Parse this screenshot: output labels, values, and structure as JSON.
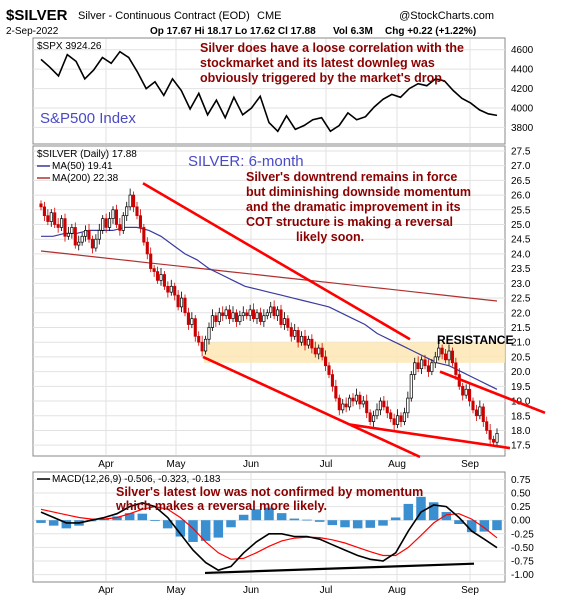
{
  "header": {
    "symbol": "$SILVER",
    "description": "Silver - Continuous Contract (EOD)",
    "exchange": "CME",
    "date": "2-Sep-2022",
    "ohlc": "Op 17.67 Hi 18.17 Lo 17.62 Cl 17.88",
    "volume": "Vol 6.3M",
    "change": "Chg +0.22 (+1.22%)",
    "watermark": "@StockCharts.com"
  },
  "colors": {
    "annotation": "#8b0000",
    "blue_label": "#4a4ac8",
    "up_candle": "#000000",
    "down_candle": "#cc0000",
    "ma50": "#3a3aa0",
    "ma200": "#b03030",
    "trendline": "#ff0000",
    "resistance_band": "#fde7b4",
    "macd_hist": "#3a8fd0",
    "macd_line": "#000000",
    "signal_line": "#ff0000"
  },
  "annotations": {
    "spx_note": [
      "Silver does have a loose correlation with the",
      "stockmarket and its latest downleg was",
      "obviously triggered by the market's drop."
    ],
    "spx_label": "S&P500 Index",
    "silver_label": "SILVER: 6-month",
    "silver_note": [
      "Silver's downtrend remains in force",
      "but diminishing downside momentum",
      "and the dramatic improvement in its",
      "COT structure is making a reversal",
      "likely soon."
    ],
    "resistance_label": "RESISTANCE",
    "macd_note": [
      "Silver's latest low was not confirmed by momentum",
      "which makes a reversal more likely."
    ]
  },
  "chart_data": [
    {
      "type": "line",
      "panel": "spx",
      "legend": "$SPX 3924.26",
      "ylim": [
        3650,
        4700
      ],
      "yticks": [
        "3800",
        "4000",
        "4200",
        "4400",
        "4600"
      ],
      "y": [
        4500,
        4420,
        4330,
        4550,
        4480,
        4300,
        4390,
        4520,
        4460,
        4580,
        4520,
        4370,
        4200,
        4270,
        4130,
        4300,
        4180,
        3990,
        4150,
        3930,
        4080,
        3900,
        4110,
        3930,
        4000,
        4120,
        3850,
        3760,
        3920,
        3780,
        3820,
        3880,
        3900,
        3760,
        3820,
        3950,
        3880,
        3910,
        4010,
        4090,
        4140,
        4110,
        4200,
        4250,
        4230,
        4300,
        4280,
        4180,
        4100,
        4050,
        3980,
        3940,
        3924
      ]
    },
    {
      "type": "candlestick",
      "panel": "silver",
      "legend": "$SILVER (Daily) 17.88",
      "ma50_legend": "MA(50) 19.41",
      "ma200_legend": "MA(200) 22.38",
      "ylim": [
        17.2,
        27.6
      ],
      "yticks": [
        "17.5",
        "18.0",
        "18.5",
        "19.0",
        "19.5",
        "20.0",
        "20.5",
        "21.0",
        "21.5",
        "22.0",
        "22.5",
        "23.0",
        "23.5",
        "24.0",
        "24.5",
        "25.0",
        "25.5",
        "26.0",
        "26.5",
        "27.0",
        "27.5"
      ],
      "months": [
        "Apr",
        "May",
        "Jun",
        "Jul",
        "Aug",
        "Sep"
      ],
      "close": [
        25.6,
        25.3,
        25.1,
        25.4,
        25.0,
        24.9,
        25.2,
        24.6,
        24.7,
        24.9,
        24.3,
        24.4,
        24.6,
        24.8,
        24.5,
        24.2,
        24.5,
        24.8,
        25.2,
        24.9,
        25.2,
        25.5,
        25.0,
        24.8,
        25.3,
        25.6,
        26.0,
        25.6,
        25.3,
        24.9,
        24.4,
        24.0,
        23.5,
        23.4,
        23.1,
        23.3,
        22.9,
        22.7,
        22.9,
        22.6,
        22.2,
        22.5,
        22.0,
        21.6,
        21.8,
        21.2,
        21.0,
        20.7,
        21.1,
        21.5,
        21.9,
        21.7,
        22.0,
        21.9,
        22.1,
        21.8,
        22.0,
        21.7,
        21.9,
        22.0,
        21.9,
        22.1,
        21.8,
        22.0,
        21.7,
        21.9,
        22.0,
        22.2,
        21.9,
        22.1,
        21.6,
        21.8,
        21.5,
        21.2,
        21.4,
        21.0,
        21.2,
        20.9,
        21.1,
        20.8,
        20.6,
        20.8,
        20.5,
        20.2,
        19.9,
        19.5,
        19.1,
        18.7,
        18.9,
        18.8,
        19.1,
        19.0,
        19.2,
        18.9,
        19.0,
        18.6,
        18.3,
        18.5,
        18.7,
        19.0,
        18.8,
        18.6,
        18.4,
        18.2,
        18.5,
        18.3,
        18.6,
        19.1,
        19.9,
        20.3,
        20.1,
        20.4,
        20.2,
        20.0,
        20.3,
        20.5,
        20.8,
        20.6,
        20.4,
        20.7,
        20.3,
        19.9,
        19.5,
        19.2,
        19.4,
        19.0,
        18.7,
        18.5,
        18.8,
        18.3,
        18.0,
        17.7,
        17.6,
        17.9
      ],
      "ma50": [
        24.6,
        24.6,
        24.7,
        24.7,
        24.8,
        24.8,
        24.8,
        24.9,
        24.9,
        24.8,
        24.6,
        24.3,
        24.0,
        23.8,
        23.5,
        23.3,
        23.1,
        22.9,
        22.8,
        22.7,
        22.6,
        22.5,
        22.4,
        22.3,
        22.2,
        22.0,
        21.8,
        21.6,
        21.3,
        21.1,
        20.9,
        20.7,
        20.5,
        20.3,
        20.2,
        20.0,
        19.8,
        19.6,
        19.4
      ],
      "ma200": [
        24.1,
        24.0,
        23.9,
        23.8,
        23.7,
        23.6,
        23.5,
        23.4,
        23.3,
        23.2,
        23.1,
        23.0,
        22.9,
        22.8,
        22.7,
        22.6,
        22.5,
        22.4
      ]
    },
    {
      "type": "line",
      "panel": "macd",
      "legend": "MACD(12,26,9) -0.506, -0.323, -0.183",
      "ylim": [
        -1.1,
        0.85
      ],
      "yticks": [
        "-1.00",
        "-0.75",
        "-0.50",
        "-0.25",
        "0.00",
        "0.25",
        "0.50",
        "0.75"
      ],
      "macd": [
        0.15,
        0.05,
        -0.05,
        -0.05,
        0.0,
        0.05,
        0.12,
        0.25,
        0.32,
        0.25,
        0.05,
        -0.25,
        -0.55,
        -0.78,
        -0.92,
        -0.85,
        -0.6,
        -0.4,
        -0.25,
        -0.25,
        -0.3,
        -0.3,
        -0.35,
        -0.45,
        -0.55,
        -0.65,
        -0.72,
        -0.75,
        -0.6,
        -0.2,
        0.15,
        0.28,
        0.25,
        0.05,
        -0.2,
        -0.35,
        -0.506
      ],
      "signal": [
        0.2,
        0.15,
        0.1,
        0.05,
        0.02,
        0.02,
        0.05,
        0.12,
        0.2,
        0.25,
        0.2,
        0.05,
        -0.15,
        -0.4,
        -0.6,
        -0.72,
        -0.7,
        -0.6,
        -0.48,
        -0.38,
        -0.33,
        -0.31,
        -0.32,
        -0.36,
        -0.42,
        -0.5,
        -0.58,
        -0.65,
        -0.65,
        -0.5,
        -0.28,
        -0.05,
        0.1,
        0.12,
        0.02,
        -0.14,
        -0.323
      ],
      "histogram": [
        -0.05,
        -0.1,
        -0.15,
        -0.1,
        -0.02,
        0.03,
        0.07,
        0.13,
        0.12,
        0.0,
        -0.15,
        -0.3,
        -0.4,
        -0.38,
        -0.32,
        -0.13,
        0.1,
        0.2,
        0.23,
        0.13,
        0.03,
        0.01,
        -0.03,
        -0.09,
        -0.13,
        -0.15,
        -0.14,
        -0.1,
        0.05,
        0.3,
        0.43,
        0.33,
        0.15,
        -0.07,
        -0.22,
        -0.21,
        -0.183
      ]
    }
  ]
}
